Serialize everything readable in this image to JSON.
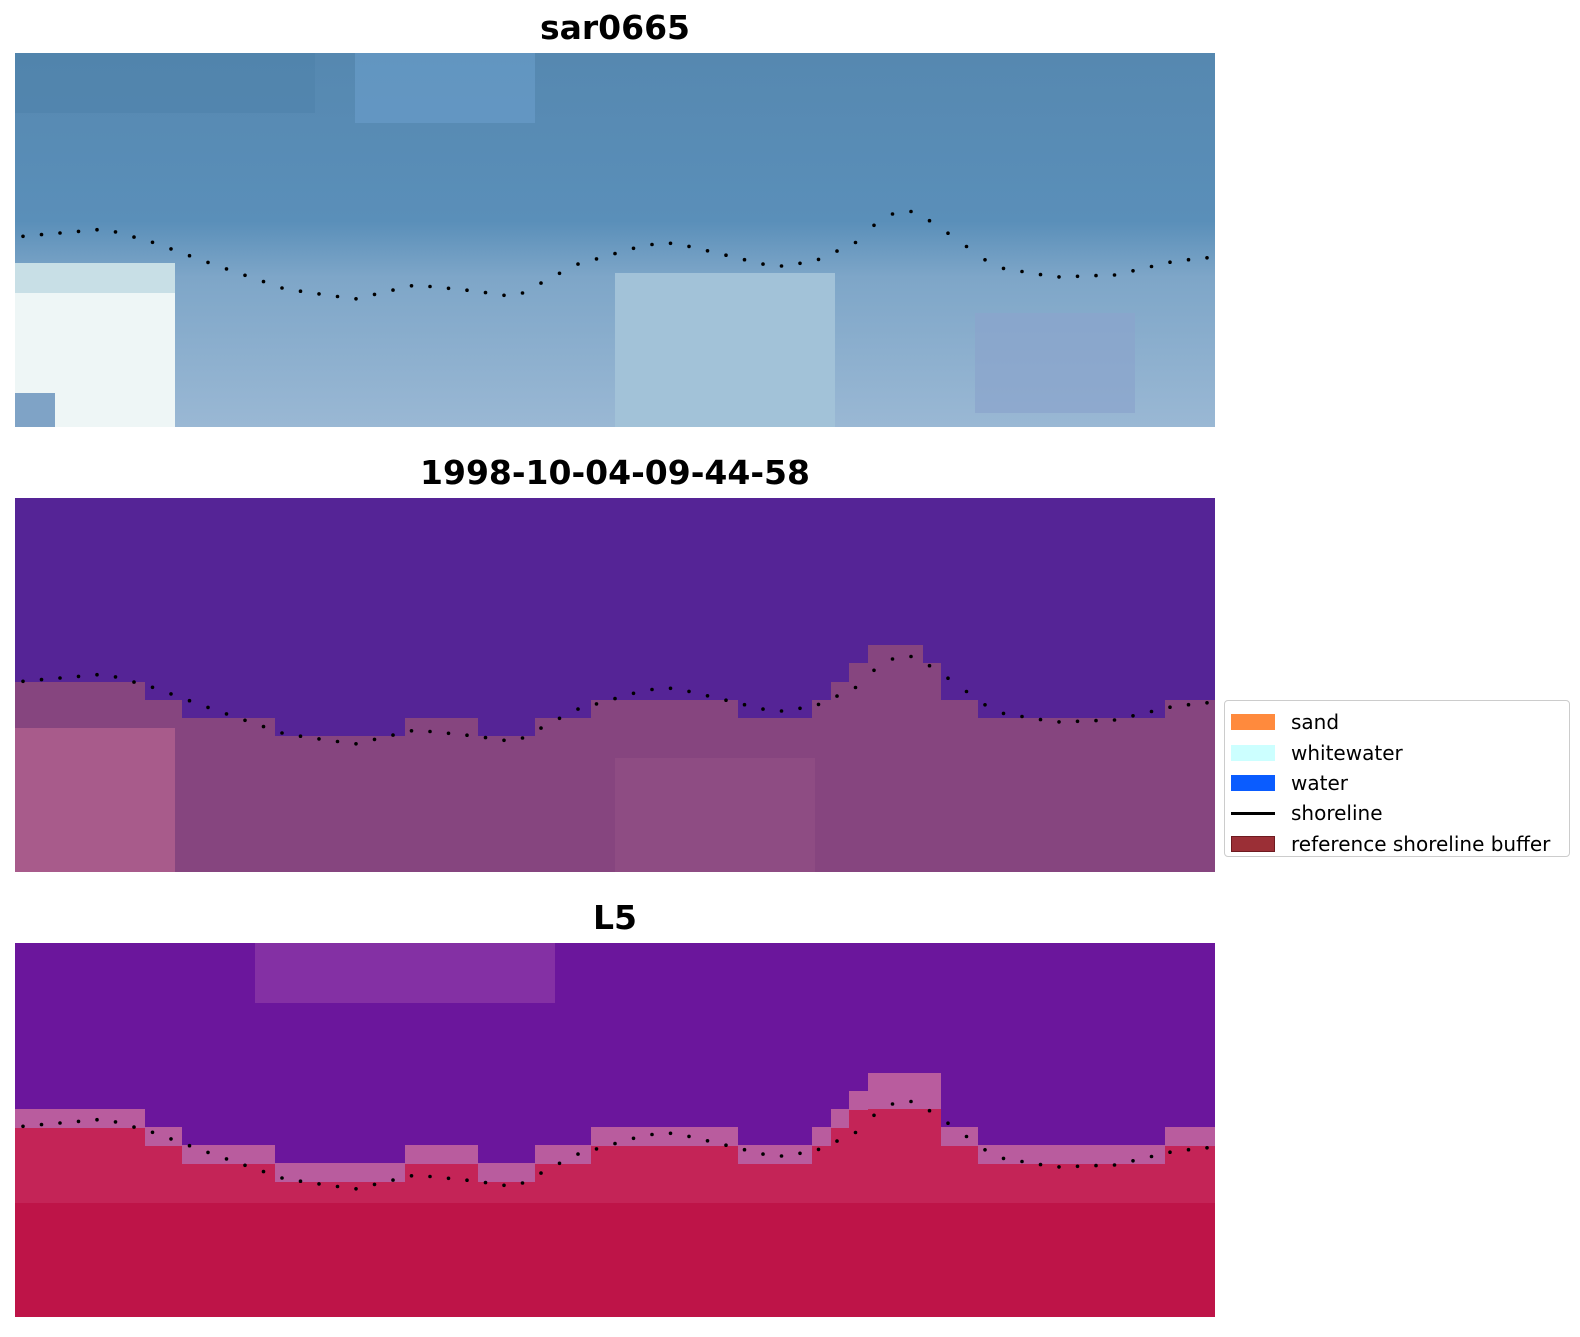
{
  "panels": [
    {
      "title": "sar0665",
      "image": "rgb-satellite-image"
    },
    {
      "title": "1998-10-04-09-44-58",
      "image": "classified-image"
    },
    {
      "title": "L5",
      "image": "index-image"
    }
  ],
  "legend": {
    "items": [
      {
        "label": "sand",
        "color": "#ff8a3d",
        "kind": "patch"
      },
      {
        "label": "whitewater",
        "color": "#ccffff",
        "kind": "patch"
      },
      {
        "label": "water",
        "color": "#0a5cff",
        "kind": "patch"
      },
      {
        "label": "shoreline",
        "color": "#000000",
        "kind": "line"
      },
      {
        "label": "reference shoreline buffer",
        "color": "#9b2f36",
        "border": "#6e1a20",
        "kind": "patch"
      }
    ]
  }
}
